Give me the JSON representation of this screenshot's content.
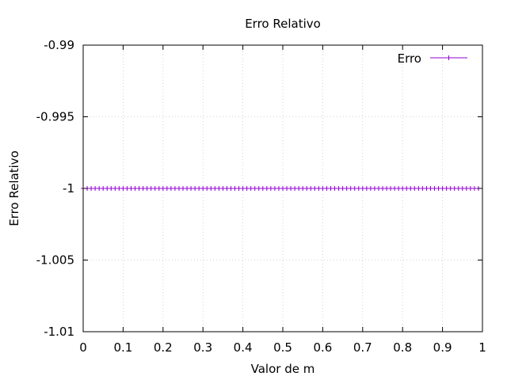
{
  "chart_data": {
    "type": "line",
    "title": "Erro Relativo",
    "xlabel": "Valor de m",
    "ylabel": "Erro Relativo",
    "xlim": [
      0,
      1
    ],
    "ylim": [
      -1.01,
      -0.99
    ],
    "xticks": [
      "0",
      "0.1",
      "0.2",
      "0.3",
      "0.4",
      "0.5",
      "0.6",
      "0.7",
      "0.8",
      "0.9",
      "1"
    ],
    "yticks": [
      "-0.99",
      "-0.995",
      "-1",
      "-1.005",
      "-1.01"
    ],
    "grid": true,
    "legend_position": "top-right",
    "series": [
      {
        "name": "Erro",
        "color": "#9400d3",
        "marker": "plus",
        "x": [
          0.0,
          0.01,
          0.02,
          0.03,
          0.04,
          0.05,
          0.06,
          0.07,
          0.08,
          0.09,
          0.1,
          0.11,
          0.12,
          0.13,
          0.14,
          0.15,
          0.16,
          0.17,
          0.18,
          0.19,
          0.2,
          0.21,
          0.22,
          0.23,
          0.24,
          0.25,
          0.26,
          0.27,
          0.28,
          0.29,
          0.3,
          0.31,
          0.32,
          0.33,
          0.34,
          0.35,
          0.36,
          0.37,
          0.38,
          0.39,
          0.4,
          0.41,
          0.42,
          0.43,
          0.44,
          0.45,
          0.46,
          0.47,
          0.48,
          0.49,
          0.5,
          0.51,
          0.52,
          0.53,
          0.54,
          0.55,
          0.56,
          0.57,
          0.58,
          0.59,
          0.6,
          0.61,
          0.62,
          0.63,
          0.64,
          0.65,
          0.66,
          0.67,
          0.68,
          0.69,
          0.7,
          0.71,
          0.72,
          0.73,
          0.74,
          0.75,
          0.76,
          0.77,
          0.78,
          0.79,
          0.8,
          0.81,
          0.82,
          0.83,
          0.84,
          0.85,
          0.86,
          0.87,
          0.88,
          0.89,
          0.9,
          0.91,
          0.92,
          0.93,
          0.94,
          0.95,
          0.96,
          0.97,
          0.98,
          0.99
        ],
        "y": [
          -1,
          -1,
          -1,
          -1,
          -1,
          -1,
          -1,
          -1,
          -1,
          -1,
          -1,
          -1,
          -1,
          -1,
          -1,
          -1,
          -1,
          -1,
          -1,
          -1,
          -1,
          -1,
          -1,
          -1,
          -1,
          -1,
          -1,
          -1,
          -1,
          -1,
          -1,
          -1,
          -1,
          -1,
          -1,
          -1,
          -1,
          -1,
          -1,
          -1,
          -1,
          -1,
          -1,
          -1,
          -1,
          -1,
          -1,
          -1,
          -1,
          -1,
          -1,
          -1,
          -1,
          -1,
          -1,
          -1,
          -1,
          -1,
          -1,
          -1,
          -1,
          -1,
          -1,
          -1,
          -1,
          -1,
          -1,
          -1,
          -1,
          -1,
          -1,
          -1,
          -1,
          -1,
          -1,
          -1,
          -1,
          -1,
          -1,
          -1,
          -1,
          -1,
          -1,
          -1,
          -1,
          -1,
          -1,
          -1,
          -1,
          -1,
          -1,
          -1,
          -1,
          -1,
          -1,
          -1,
          -1,
          -1,
          -1,
          -1
        ]
      }
    ]
  }
}
